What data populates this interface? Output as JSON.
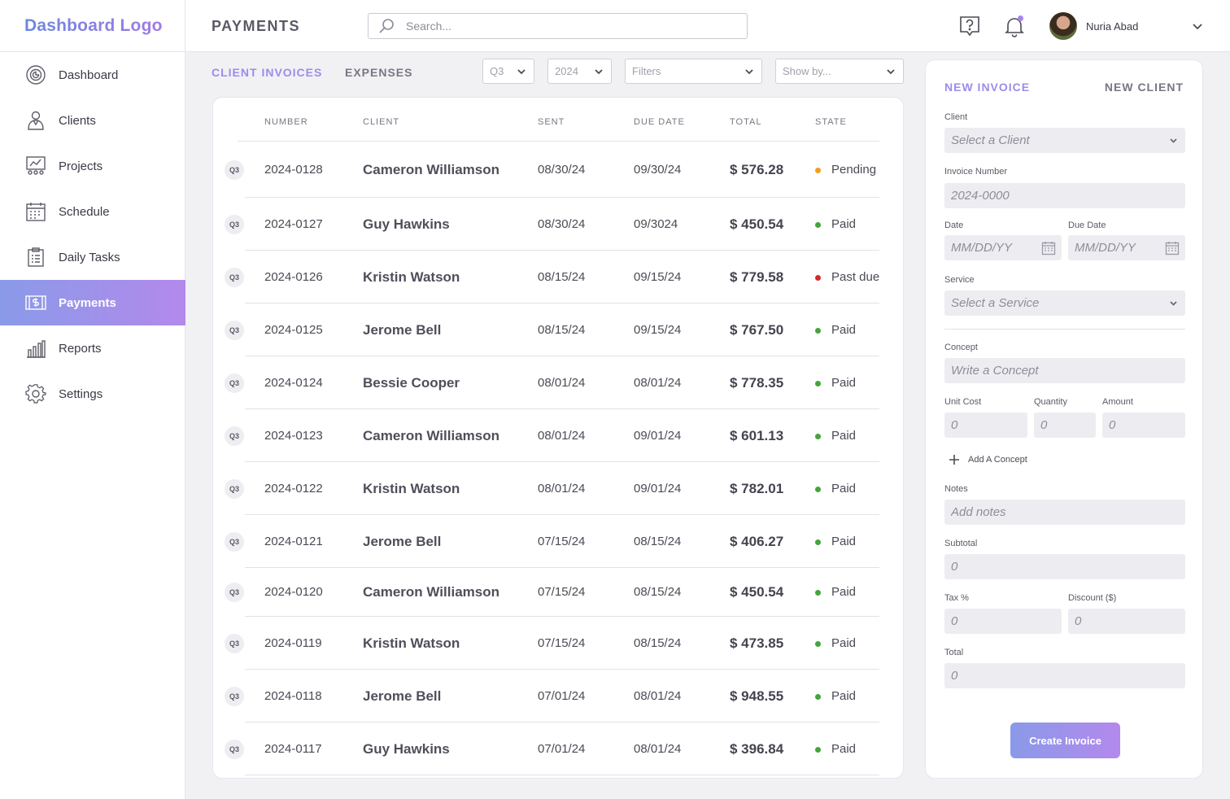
{
  "logo": "Dashboard Logo",
  "nav": [
    {
      "label": "Dashboard",
      "icon": "dashboard-icon"
    },
    {
      "label": "Clients",
      "icon": "clients-icon"
    },
    {
      "label": "Projects",
      "icon": "projects-icon"
    },
    {
      "label": "Schedule",
      "icon": "calendar-icon"
    },
    {
      "label": "Daily Tasks",
      "icon": "clipboard-icon"
    },
    {
      "label": "Payments",
      "icon": "payments-icon",
      "active": true
    },
    {
      "label": "Reports",
      "icon": "bar-chart-icon"
    },
    {
      "label": "Settings",
      "icon": "gear-icon"
    }
  ],
  "header": {
    "title": "PAYMENTS",
    "search_placeholder": "Search...",
    "user_name": "Nuria Abad"
  },
  "tabs": {
    "client_invoices": "CLIENT INVOICES",
    "expenses": "EXPENSES"
  },
  "filters": {
    "quarter": "Q3",
    "year": "2024",
    "filters": "Filters",
    "show_by": "Show by..."
  },
  "table": {
    "columns": [
      "NUMBER",
      "CLIENT",
      "SENT",
      "DUE DATE",
      "TOTAL",
      "STATE"
    ],
    "rows": [
      {
        "q": "Q3",
        "number": "2024-0128",
        "client": "Cameron Williamson",
        "sent": "08/30/24",
        "due": "09/30/24",
        "total": "$ 576.28",
        "state": "Pending",
        "state_color": "#f0a020"
      },
      {
        "q": "Q3",
        "number": "2024-0127",
        "client": "Guy Hawkins",
        "sent": "08/30/24",
        "due": "09/3024",
        "total": "$ 450.54",
        "state": "Paid",
        "state_color": "#43a53a"
      },
      {
        "q": "Q3",
        "number": "2024-0126",
        "client": "Kristin Watson",
        "sent": "08/15/24",
        "due": "09/15/24",
        "total": "$ 779.58",
        "state": "Past due",
        "state_color": "#d42a2a"
      },
      {
        "q": "Q3",
        "number": "2024-0125",
        "client": "Jerome Bell",
        "sent": "08/15/24",
        "due": "09/15/24",
        "total": "$ 767.50",
        "state": "Paid",
        "state_color": "#43a53a"
      },
      {
        "q": "Q3",
        "number": "2024-0124",
        "client": "Bessie Cooper",
        "sent": "08/01/24",
        "due": "08/01/24",
        "total": "$ 778.35",
        "state": "Paid",
        "state_color": "#43a53a"
      },
      {
        "q": "Q3",
        "number": "2024-0123",
        "client": "Cameron Williamson",
        "sent": "08/01/24",
        "due": "09/01/24",
        "total": "$ 601.13",
        "state": "Paid",
        "state_color": "#43a53a"
      },
      {
        "q": "Q3",
        "number": "2024-0122",
        "client": "Kristin Watson",
        "sent": "08/01/24",
        "due": "09/01/24",
        "total": "$ 782.01",
        "state": "Paid",
        "state_color": "#43a53a"
      },
      {
        "q": "Q3",
        "number": "2024-0121",
        "client": "Jerome Bell",
        "sent": "07/15/24",
        "due": "08/15/24",
        "total": "$ 406.27",
        "state": "Paid",
        "state_color": "#43a53a"
      },
      {
        "q": "Q3",
        "number": "2024-0120",
        "client": "Cameron Williamson",
        "sent": "07/15/24",
        "due": "08/15/24",
        "total": "$ 450.54",
        "state": "Paid",
        "state_color": "#43a53a"
      },
      {
        "q": "Q3",
        "number": "2024-0119",
        "client": "Kristin Watson",
        "sent": "07/15/24",
        "due": "08/15/24",
        "total": "$ 473.85",
        "state": "Paid",
        "state_color": "#43a53a"
      },
      {
        "q": "Q3",
        "number": "2024-0118",
        "client": "Jerome Bell",
        "sent": "07/01/24",
        "due": "08/01/24",
        "total": "$ 948.55",
        "state": "Paid",
        "state_color": "#43a53a"
      },
      {
        "q": "Q3",
        "number": "2024-0117",
        "client": "Guy Hawkins",
        "sent": "07/01/24",
        "due": "08/01/24",
        "total": "$ 396.84",
        "state": "Paid",
        "state_color": "#43a53a"
      }
    ]
  },
  "form": {
    "tab_new_invoice": "NEW INVOICE",
    "tab_new_client": "NEW CLIENT",
    "client_label": "Client",
    "client_placeholder": "Select a Client",
    "invoice_number_label": "Invoice Number",
    "invoice_number_placeholder": "2024-0000",
    "date_label": "Date",
    "date_placeholder": "MM/DD/YY",
    "due_date_label": "Due Date",
    "due_date_placeholder": "MM/DD/YY",
    "service_label": "Service",
    "service_placeholder": "Select a Service",
    "concept_label": "Concept",
    "concept_placeholder": "Write a Concept",
    "unit_cost_label": "Unit Cost",
    "unit_cost_placeholder": "0",
    "quantity_label": "Quantity",
    "quantity_placeholder": "0",
    "amount_label": "Amount",
    "amount_placeholder": "0",
    "add_concept": "Add A Concept",
    "notes_label": "Notes",
    "notes_placeholder": "Add notes",
    "subtotal_label": "Subtotal",
    "subtotal_placeholder": "0",
    "tax_label": "Tax %",
    "tax_placeholder": "0",
    "discount_label": "Discount ($)",
    "discount_placeholder": "0",
    "total_label": "Total",
    "total_placeholder": "0",
    "create_button": "Create Invoice"
  }
}
